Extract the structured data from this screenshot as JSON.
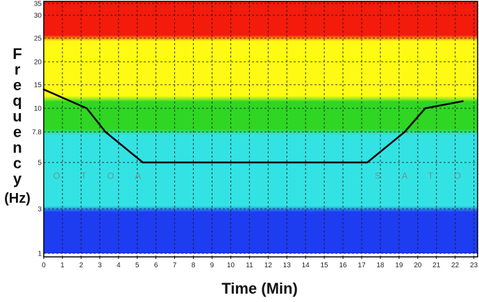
{
  "chart_data": {
    "type": "line",
    "xlabel": "Time (Min)",
    "ylabel": "Frequency",
    "ylabel_unit": "(Hz)",
    "x_ticks": [
      0,
      1,
      2,
      3,
      4,
      5,
      6,
      7,
      8,
      9,
      10,
      11,
      12,
      13,
      14,
      15,
      16,
      17,
      18,
      19,
      20,
      21,
      22,
      23
    ],
    "xlim": [
      0,
      23.2
    ],
    "y_ticks": [
      {
        "value": 1,
        "label": "1"
      },
      {
        "value": 3,
        "label": "3"
      },
      {
        "value": 5,
        "label": "5"
      },
      {
        "value": 7.8,
        "label": "7.8"
      },
      {
        "value": 10,
        "label": "10"
      },
      {
        "value": 15,
        "label": "15"
      },
      {
        "value": 20,
        "label": "20"
      },
      {
        "value": 25,
        "label": "25"
      },
      {
        "value": 30,
        "label": "30"
      },
      {
        "value": 35,
        "label": "35"
      }
    ],
    "ylim": [
      1,
      36
    ],
    "y_scale": "nonlinear",
    "grid": true,
    "bands": [
      {
        "from": 1,
        "to": 3,
        "color": "#1e3cf0"
      },
      {
        "from": 3,
        "to": 7.8,
        "color": "#33e3e3"
      },
      {
        "from": 7.8,
        "to": 12,
        "color": "#2fd623"
      },
      {
        "from": 12,
        "to": 25,
        "color": "#fffa14"
      },
      {
        "from": 25,
        "to": 36,
        "color": "#f21b0c"
      }
    ],
    "series": [
      {
        "color": "#000000",
        "x": [
          0,
          2.3,
          3.3,
          5.3,
          17.3,
          19.3,
          20.4,
          22.4
        ],
        "y": [
          14,
          10,
          7.8,
          5,
          5,
          7.8,
          10,
          11.5
        ]
      }
    ],
    "annotations": [
      {
        "x": 0.5,
        "y": 4.3,
        "text": "OTOA"
      },
      {
        "x": 17.7,
        "y": 4.3,
        "text": "SATOL"
      }
    ]
  }
}
